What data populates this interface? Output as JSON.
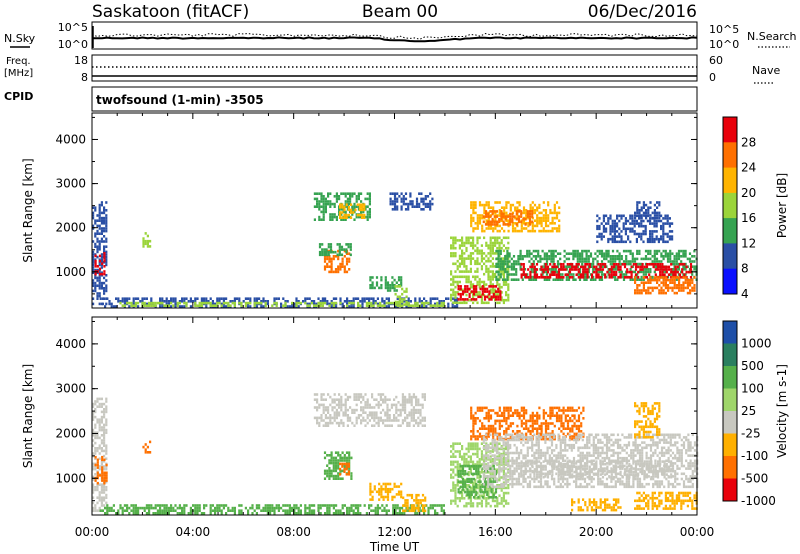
{
  "header": {
    "station": "Saskatoon (fitACF)",
    "beam": "Beam 00",
    "date": "06/Dec/2016"
  },
  "top_panels": {
    "nsky_label": "N.Sky",
    "nsky_ticks": [
      "10^5",
      "10^0"
    ],
    "nsearch_label": "N.Search",
    "nsearch_ticks": [
      "10^5",
      "10^0"
    ],
    "freq_label": "Freq.",
    "freq_unit": "[MHz]",
    "freq_ticks": [
      "18",
      "8"
    ],
    "nave_label": "Nave",
    "nave_ticks": [
      "60",
      "0"
    ],
    "cpid_label": "CPID",
    "cpid_value": "twofsound (1-min) -3505"
  },
  "chart_data": [
    {
      "type": "heatmap",
      "name": "power",
      "ylabel": "Slant Range [km]",
      "colorbar_label": "Power [dB]",
      "colorbar_ticks": [
        "28",
        "24",
        "20",
        "16",
        "12",
        "8",
        "4"
      ],
      "colorbar_colors": [
        "#e8000b",
        "#ff7000",
        "#ffb400",
        "#9bd43a",
        "#36a351",
        "#2a4fa5",
        "#0a10ff"
      ],
      "ylim": [
        180,
        4600
      ],
      "yticks": [
        1000,
        2000,
        3000,
        4000
      ],
      "xlim_hours": [
        0,
        24
      ],
      "regions": [
        {
          "t": [
            0.0,
            0.6
          ],
          "r": [
            300,
            2600
          ],
          "level": 8
        },
        {
          "t": [
            0.1,
            0.5
          ],
          "r": [
            950,
            1450
          ],
          "level": 28
        },
        {
          "t": [
            2.0,
            2.3
          ],
          "r": [
            1600,
            1900
          ],
          "level": 16
        },
        {
          "t": [
            0.3,
            14.5
          ],
          "r": [
            200,
            420
          ],
          "level": 8
        },
        {
          "t": [
            1.0,
            14.0
          ],
          "r": [
            220,
            320
          ],
          "level": 16
        },
        {
          "t": [
            9.2,
            10.2
          ],
          "r": [
            1000,
            1500
          ],
          "level": 24
        },
        {
          "t": [
            9.0,
            10.3
          ],
          "r": [
            1400,
            1650
          ],
          "level": 12
        },
        {
          "t": [
            8.8,
            11.0
          ],
          "r": [
            2200,
            2800
          ],
          "level": 12
        },
        {
          "t": [
            9.8,
            10.8
          ],
          "r": [
            2250,
            2550
          ],
          "level": 20
        },
        {
          "t": [
            11.0,
            12.3
          ],
          "r": [
            600,
            900
          ],
          "level": 12
        },
        {
          "t": [
            12.0,
            12.5
          ],
          "r": [
            250,
            700
          ],
          "level": 16
        },
        {
          "t": [
            11.8,
            13.5
          ],
          "r": [
            2400,
            2800
          ],
          "level": 8
        },
        {
          "t": [
            14.2,
            16.5
          ],
          "r": [
            300,
            1800
          ],
          "level": 16
        },
        {
          "t": [
            14.5,
            16.2
          ],
          "r": [
            400,
            700
          ],
          "level": 28
        },
        {
          "t": [
            15.0,
            18.5
          ],
          "r": [
            1900,
            2600
          ],
          "level": 20
        },
        {
          "t": [
            15.5,
            17.5
          ],
          "r": [
            2100,
            2400
          ],
          "level": 24
        },
        {
          "t": [
            16.0,
            24.0
          ],
          "r": [
            800,
            1500
          ],
          "level": 12
        },
        {
          "t": [
            17.0,
            23.8
          ],
          "r": [
            900,
            1200
          ],
          "level": 28
        },
        {
          "t": [
            21.5,
            23.9
          ],
          "r": [
            500,
            900
          ],
          "level": 24
        },
        {
          "t": [
            20.0,
            23.0
          ],
          "r": [
            1700,
            2300
          ],
          "level": 8
        },
        {
          "t": [
            21.5,
            22.5
          ],
          "r": [
            2200,
            2600
          ],
          "level": 8
        }
      ]
    },
    {
      "type": "heatmap",
      "name": "velocity",
      "ylabel": "Slant Range [km]",
      "colorbar_label": "Velocity [m s-1]",
      "colorbar_ticks": [
        "1000",
        "500",
        "100",
        "25",
        "-25",
        "-100",
        "-500",
        "-1000"
      ],
      "colorbar_colors": [
        "#1e4fa8",
        "#2a7f5f",
        "#55b04a",
        "#9fd66a",
        "#c8c8c0",
        "#ffb000",
        "#ff7000",
        "#e8000b"
      ],
      "ylim": [
        180,
        4600
      ],
      "yticks": [
        1000,
        2000,
        3000,
        4000
      ],
      "xlim_hours": [
        0,
        24
      ],
      "xticks": [
        "00:00",
        "04:00",
        "08:00",
        "12:00",
        "16:00",
        "20:00",
        "00:00"
      ],
      "xlabel": "Time UT",
      "regions": [
        {
          "t": [
            0.0,
            0.6
          ],
          "r": [
            300,
            2800
          ],
          "level": 0
        },
        {
          "t": [
            0.1,
            0.6
          ],
          "r": [
            900,
            1500
          ],
          "level": -500
        },
        {
          "t": [
            2.0,
            2.3
          ],
          "r": [
            1600,
            1900
          ],
          "level": -500
        },
        {
          "t": [
            0.3,
            14.0
          ],
          "r": [
            200,
            420
          ],
          "level": 100
        },
        {
          "t": [
            9.2,
            10.3
          ],
          "r": [
            1000,
            1600
          ],
          "level": 100
        },
        {
          "t": [
            9.8,
            10.2
          ],
          "r": [
            1100,
            1350
          ],
          "level": -500
        },
        {
          "t": [
            8.8,
            13.2
          ],
          "r": [
            2200,
            2900
          ],
          "level": 0
        },
        {
          "t": [
            11.0,
            12.3
          ],
          "r": [
            550,
            900
          ],
          "level": -100
        },
        {
          "t": [
            12.3,
            13.2
          ],
          "r": [
            300,
            650
          ],
          "level": -100
        },
        {
          "t": [
            14.2,
            16.5
          ],
          "r": [
            400,
            1800
          ],
          "level": 25
        },
        {
          "t": [
            14.5,
            16.0
          ],
          "r": [
            600,
            1300
          ],
          "level": 100
        },
        {
          "t": [
            15.0,
            19.5
          ],
          "r": [
            1900,
            2600
          ],
          "level": -500
        },
        {
          "t": [
            15.5,
            24.0
          ],
          "r": [
            800,
            2000
          ],
          "level": 0
        },
        {
          "t": [
            17.0,
            23.0
          ],
          "r": [
            1000,
            1400
          ],
          "level": 0
        },
        {
          "t": [
            19.0,
            21.0
          ],
          "r": [
            300,
            550
          ],
          "level": -100
        },
        {
          "t": [
            21.5,
            24.0
          ],
          "r": [
            300,
            700
          ],
          "level": -100
        },
        {
          "t": [
            21.5,
            22.5
          ],
          "r": [
            1900,
            2700
          ],
          "level": -100
        }
      ]
    }
  ]
}
